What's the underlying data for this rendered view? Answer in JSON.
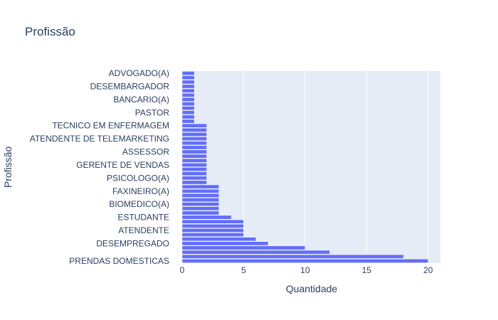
{
  "chart_data": {
    "type": "bar",
    "orientation": "horizontal",
    "title": "Profissão",
    "xlabel": "Quantidade",
    "ylabel": "Profissão",
    "xlim": [
      0,
      21
    ],
    "x_ticks": [
      0,
      5,
      10,
      15,
      20
    ],
    "grid": true,
    "colors": {
      "bar": "#636efa",
      "bar_edge": "#ffffff",
      "plot_bg": "#e5ecf6",
      "grid": "#ffffff",
      "text": "#2a3f5f"
    },
    "categories": [
      "PRENDAS DOMESTICAS",
      "",
      "",
      "",
      "DESEMPREGADO",
      "",
      "",
      "ATENDENTE",
      "",
      "",
      "ESTUDANTE",
      "",
      "",
      "BIOMEDICO(A)",
      "",
      "",
      "FAXINEIRO(A)",
      "",
      "",
      "PSICOLOGO(A)",
      "",
      "",
      "GERENTE DE VENDAS",
      "",
      "",
      "ASSESSOR",
      "",
      "",
      "ATENDENTE DE TELEMARKETING",
      "",
      "",
      "TECNICO EM ENFERMAGEM",
      "",
      "",
      "PASTOR",
      "",
      "",
      "BANCARIO(A)",
      "",
      "",
      "DESEMBARGADOR",
      "",
      "",
      "ADVOGADO(A)"
    ],
    "values": [
      20,
      18,
      12,
      10,
      7,
      6,
      5,
      5,
      5,
      5,
      4,
      3,
      3,
      3,
      3,
      3,
      3,
      3,
      2,
      2,
      2,
      2,
      2,
      2,
      2,
      2,
      2,
      2,
      2,
      2,
      2,
      2,
      1,
      1,
      1,
      1,
      1,
      1,
      1,
      1,
      1,
      1,
      1,
      1
    ]
  }
}
